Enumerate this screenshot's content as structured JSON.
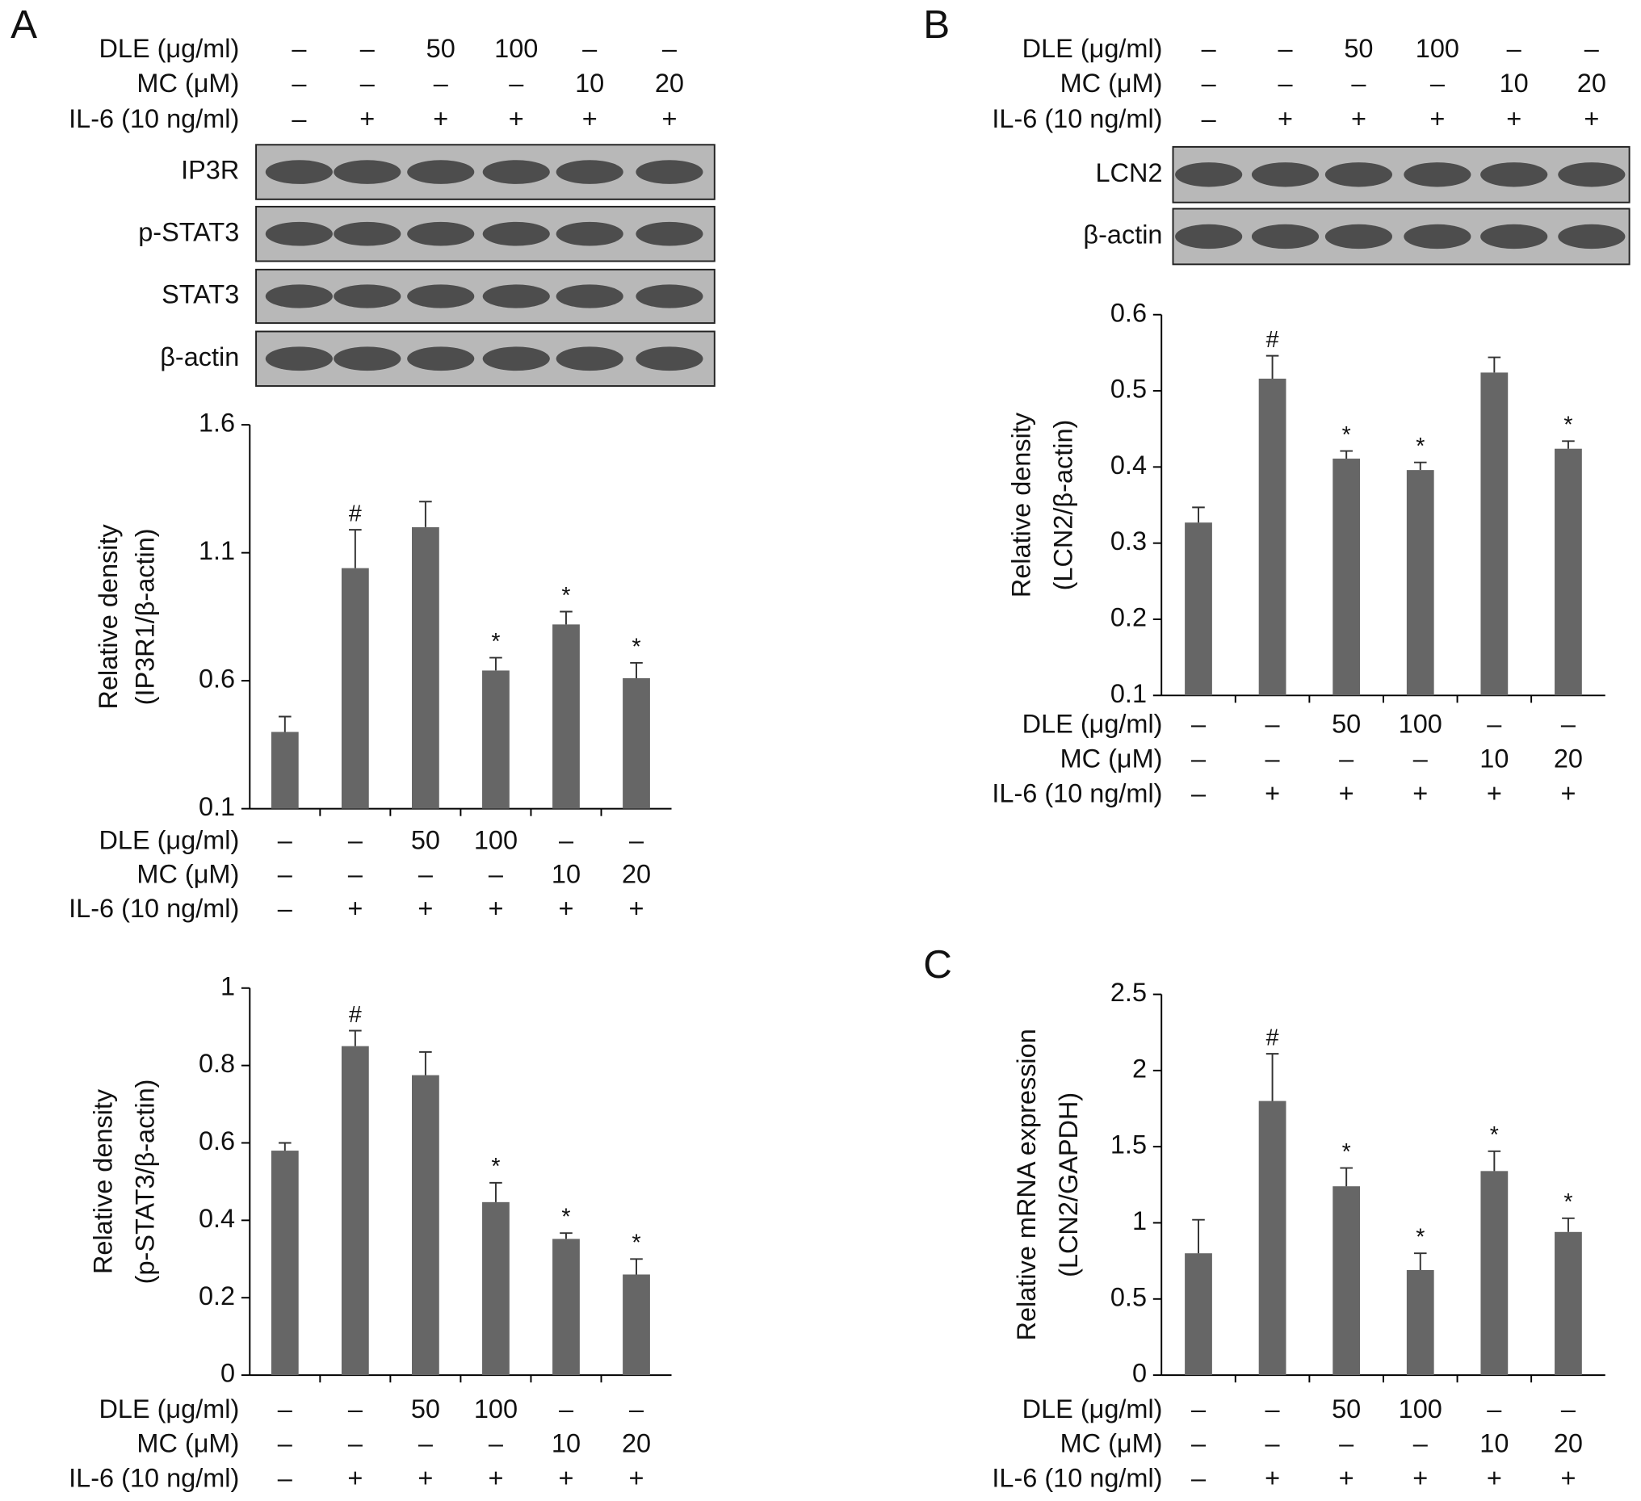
{
  "panels": [
    {
      "label": "A",
      "header_rows": [
        {
          "label": "DLE (μg/ml)",
          "values": [
            "–",
            "–",
            "50",
            "100",
            "–",
            "–"
          ]
        },
        {
          "label": "MC (μM)",
          "values": [
            "–",
            "–",
            "–",
            "–",
            "10",
            "20"
          ]
        },
        {
          "label": "IL-6 (10 ng/ml)",
          "values": [
            "–",
            "+",
            "+",
            "+",
            "+",
            "+"
          ]
        }
      ],
      "blots": [
        "IP3R",
        "p-STAT3",
        "STAT3",
        "β-actin"
      ]
    },
    {
      "label": "B",
      "header_rows": [
        {
          "label": "DLE (μg/ml)",
          "values": [
            "–",
            "–",
            "50",
            "100",
            "–",
            "–"
          ]
        },
        {
          "label": "MC (μM)",
          "values": [
            "–",
            "–",
            "–",
            "–",
            "10",
            "20"
          ]
        },
        {
          "label": "IL-6 (10 ng/ml)",
          "values": [
            "–",
            "+",
            "+",
            "+",
            "+",
            "+"
          ]
        }
      ],
      "blots": [
        "LCN2",
        "β-actin"
      ]
    },
    {
      "label": "C"
    }
  ],
  "chart_data": [
    {
      "type": "bar",
      "y_label": [
        "Relative density",
        "(IP3R1/β-actin)"
      ],
      "values": [
        0.4,
        1.04,
        1.2,
        0.64,
        0.82,
        0.61
      ],
      "errors": [
        0.06,
        0.15,
        0.1,
        0.05,
        0.05,
        0.06
      ],
      "annotations": [
        null,
        "#",
        null,
        "*",
        "*",
        "*"
      ],
      "color": "#666666",
      "ylim": [
        0.1,
        1.6
      ],
      "yticks": [
        0.1,
        0.6,
        1.1,
        1.6
      ],
      "conditions": [
        {
          "label": "DLE (μg/ml)",
          "values": [
            "–",
            "–",
            "50",
            "100",
            "–",
            "–"
          ]
        },
        {
          "label": "MC (μM)",
          "values": [
            "–",
            "–",
            "–",
            "–",
            "10",
            "20"
          ]
        },
        {
          "label": "IL-6 (10 ng/ml)",
          "values": [
            "–",
            "+",
            "+",
            "+",
            "+",
            "+"
          ]
        }
      ]
    },
    {
      "type": "bar",
      "y_label": [
        "Relative density",
        "(p-STAT3/β-actin)"
      ],
      "values": [
        0.58,
        0.85,
        0.775,
        0.447,
        0.352,
        0.26
      ],
      "errors": [
        0.02,
        0.04,
        0.06,
        0.05,
        0.015,
        0.04
      ],
      "annotations": [
        null,
        "#",
        null,
        "*",
        "*",
        "*"
      ],
      "color": "#666666",
      "ylim": [
        0,
        1
      ],
      "yticks": [
        0,
        0.2,
        0.4,
        0.6,
        0.8,
        1
      ],
      "conditions": [
        {
          "label": "DLE (μg/ml)",
          "values": [
            "–",
            "–",
            "50",
            "100",
            "–",
            "–"
          ]
        },
        {
          "label": "MC (μM)",
          "values": [
            "–",
            "–",
            "–",
            "–",
            "10",
            "20"
          ]
        },
        {
          "label": "IL-6 (10 ng/ml)",
          "values": [
            "–",
            "+",
            "+",
            "+",
            "+",
            "+"
          ]
        }
      ]
    },
    {
      "type": "bar",
      "y_label": [
        "Relative density",
        "(LCN2/β-actin)"
      ],
      "values": [
        0.327,
        0.516,
        0.411,
        0.396,
        0.524,
        0.424
      ],
      "errors": [
        0.02,
        0.03,
        0.01,
        0.01,
        0.02,
        0.01
      ],
      "annotations": [
        null,
        "#",
        "*",
        "*",
        null,
        "*"
      ],
      "color": "#666666",
      "ylim": [
        0.1,
        0.6
      ],
      "yticks": [
        0.1,
        0.2,
        0.3,
        0.4,
        0.5,
        0.6
      ],
      "conditions": [
        {
          "label": "DLE (μg/ml)",
          "values": [
            "–",
            "–",
            "50",
            "100",
            "–",
            "–"
          ]
        },
        {
          "label": "MC (μM)",
          "values": [
            "–",
            "–",
            "–",
            "–",
            "10",
            "20"
          ]
        },
        {
          "label": "IL-6 (10 ng/ml)",
          "values": [
            "–",
            "+",
            "+",
            "+",
            "+",
            "+"
          ]
        }
      ]
    },
    {
      "type": "bar",
      "y_label": [
        "Relative mRNA expression",
        "(LCN2/GAPDH)"
      ],
      "values": [
        0.8,
        1.8,
        1.24,
        0.69,
        1.34,
        0.94
      ],
      "errors": [
        0.22,
        0.31,
        0.12,
        0.11,
        0.13,
        0.09
      ],
      "annotations": [
        null,
        "#",
        "*",
        "*",
        "*",
        "*"
      ],
      "color": "#666666",
      "ylim": [
        0,
        2.5
      ],
      "yticks": [
        0,
        0.5,
        1,
        1.5,
        2,
        2.5
      ],
      "conditions": [
        {
          "label": "DLE (μg/ml)",
          "values": [
            "–",
            "–",
            "50",
            "100",
            "–",
            "–"
          ]
        },
        {
          "label": "MC (μM)",
          "values": [
            "–",
            "–",
            "–",
            "–",
            "10",
            "20"
          ]
        },
        {
          "label": "IL-6 (10 ng/ml)",
          "values": [
            "–",
            "+",
            "+",
            "+",
            "+",
            "+"
          ]
        }
      ]
    }
  ]
}
